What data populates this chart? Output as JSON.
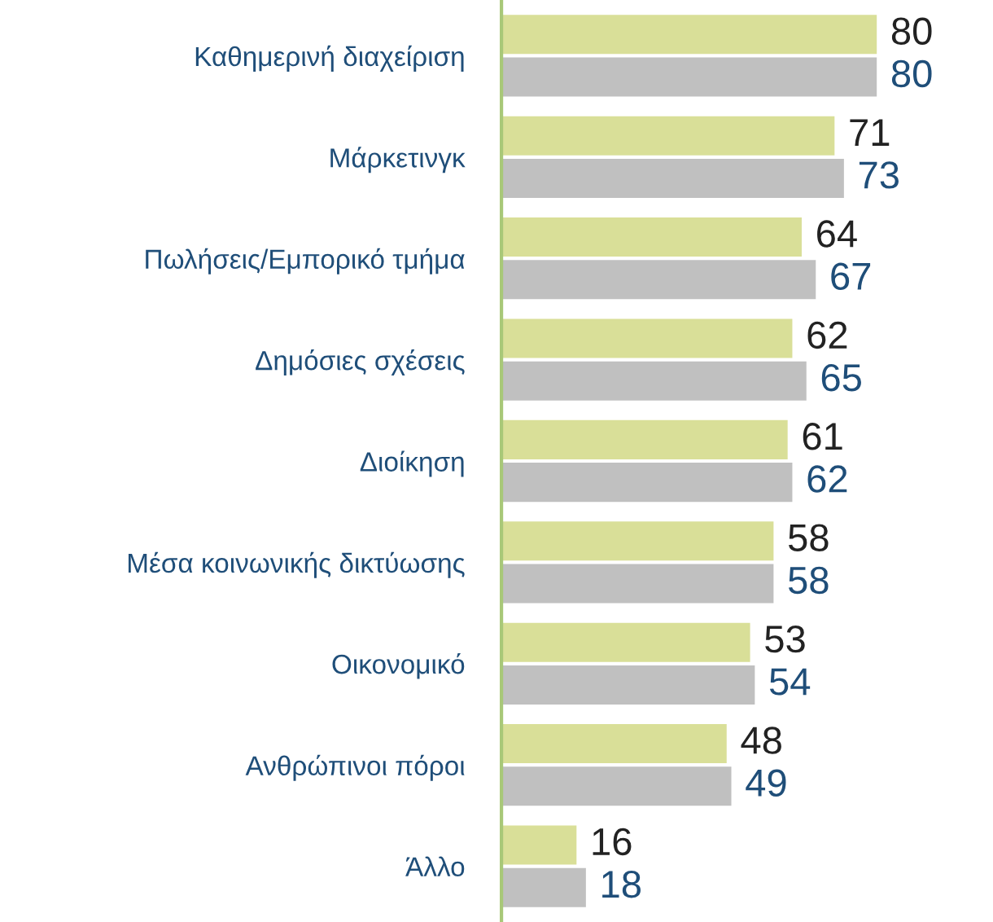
{
  "chart_data": {
    "type": "bar",
    "orientation": "horizontal",
    "categories": [
      "Καθημερινή διαχείριση",
      "Μάρκετινγκ",
      "Πωλήσεις/Εμπορικό τμήμα",
      "Δημόσιες σχέσεις",
      "Διοίκηση",
      "Μέσα κοινωνικής δικτύωσης",
      "Οικονομικό",
      "Ανθρώπινοι πόροι",
      "Άλλο"
    ],
    "series": [
      {
        "color": "#d9df98",
        "values": [
          80,
          71,
          64,
          62,
          61,
          58,
          53,
          48,
          16
        ]
      },
      {
        "color": "#c0c0c0",
        "values": [
          80,
          73,
          67,
          65,
          62,
          58,
          54,
          49,
          18
        ]
      }
    ],
    "tick_labels": "y",
    "data_labels": true,
    "grid": false,
    "legend": false
  }
}
